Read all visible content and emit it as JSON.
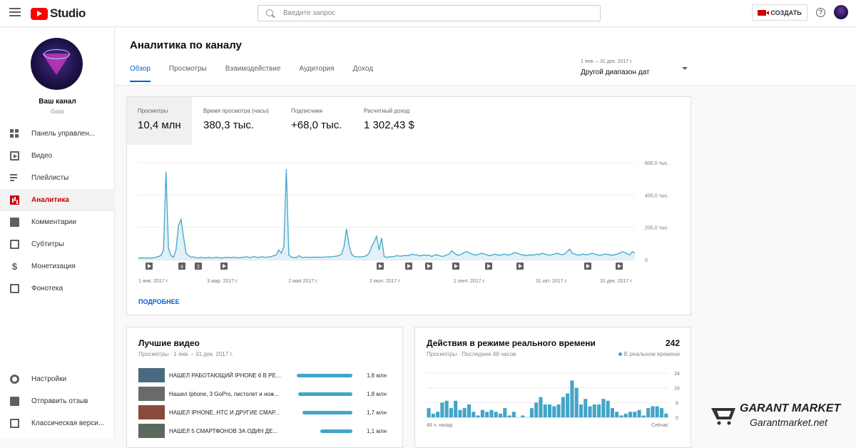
{
  "app": {
    "logo_text": "Studio"
  },
  "search": {
    "placeholder": "Введите запрос"
  },
  "toolbar": {
    "create_label": "СОЗДАТЬ",
    "help_glyph": "?"
  },
  "channel": {
    "name": "Ваш канал",
    "handle": "Goss"
  },
  "sidebar": {
    "items": [
      {
        "label": "Панель управлен...",
        "icon": "dashboard-icon",
        "active": false
      },
      {
        "label": "Видео",
        "icon": "video-icon",
        "active": false
      },
      {
        "label": "Плейлисты",
        "icon": "playlist-icon",
        "active": false
      },
      {
        "label": "Аналитика",
        "icon": "analytics-icon",
        "active": true
      },
      {
        "label": "Комментарии",
        "icon": "comments-icon",
        "active": false
      },
      {
        "label": "Субтитры",
        "icon": "subtitles-icon",
        "active": false
      },
      {
        "label": "Монетизация",
        "icon": "dollar-icon",
        "active": false
      },
      {
        "label": "Фонотека",
        "icon": "audio-library-icon",
        "active": false
      }
    ],
    "bottom_items": [
      {
        "label": "Настройки",
        "icon": "gear-icon"
      },
      {
        "label": "Отправить отзыв",
        "icon": "feedback-icon"
      },
      {
        "label": "Классическая верси...",
        "icon": "classic-icon"
      }
    ]
  },
  "header": {
    "title": "Аналитика по каналу",
    "tabs": [
      {
        "label": "Обзор",
        "active": true
      },
      {
        "label": "Просмотры",
        "active": false
      },
      {
        "label": "Взаимодействие",
        "active": false
      },
      {
        "label": "Аудитория",
        "active": false
      },
      {
        "label": "Доход",
        "active": false
      }
    ],
    "date_range_small": "1 янв. – 31 дек. 2017 г.",
    "date_range_label": "Другой диапазон дат"
  },
  "overview": {
    "metrics": [
      {
        "label": "Просмотры",
        "value": "10,4 млн",
        "active": true
      },
      {
        "label": "Время просмотра (часы)",
        "value": "380,3 тыс.",
        "active": false
      },
      {
        "label": "Подписчики",
        "value": "+68,0 тыс.",
        "active": false
      },
      {
        "label": "Расчетный доход",
        "value": "1 302,43 $",
        "active": false
      }
    ],
    "more_label": "ПОДРОБНЕЕ"
  },
  "chart_data": [
    {
      "type": "area",
      "y_ticks": [
        "600,0 тыс.",
        "400,0 тыс.",
        "200,0 тыс.",
        "0"
      ],
      "ylim": [
        0,
        600000
      ],
      "x_labels": [
        "1 янв. 2017 г.",
        "3 мар. 2017 г.",
        "2 мая 2017 г.",
        "2 июл. 2017 г.",
        "1 сент. 2017 г.",
        "31 окт. 2017 г.",
        "31 дек. 2017 г."
      ],
      "markers": [
        "",
        "4",
        "2",
        "",
        "",
        "",
        "",
        "",
        "",
        "",
        "",
        ""
      ],
      "values": [
        10000,
        10000,
        12000,
        10000,
        11000,
        10000,
        12000,
        15000,
        20000,
        25000,
        60000,
        545000,
        70000,
        25000,
        15000,
        60000,
        210000,
        250000,
        140000,
        40000,
        25000,
        15000,
        18000,
        12000,
        10000,
        14000,
        12000,
        10000,
        15000,
        12000,
        11000,
        16000,
        12000,
        10000,
        12000,
        15000,
        14000,
        12000,
        16000,
        13000,
        12000,
        15000,
        14000,
        18000,
        15000,
        14000,
        20000,
        15000,
        14000,
        18000,
        16000,
        15000,
        17000,
        19000,
        25000,
        30000,
        60000,
        40000,
        80000,
        560000,
        30000,
        15000,
        14000,
        12000,
        25000,
        15000,
        14000,
        16000,
        15000,
        14000,
        16000,
        14000,
        16000,
        15000,
        16000,
        17000,
        18000,
        17000,
        20000,
        22000,
        25000,
        35000,
        80000,
        190000,
        90000,
        35000,
        20000,
        18000,
        17000,
        18000,
        20000,
        25000,
        40000,
        80000,
        110000,
        145000,
        60000,
        135000,
        20000,
        14000,
        18000,
        18000,
        20000,
        25000,
        22000,
        22000,
        26000,
        25000,
        25000,
        35000,
        30000,
        30000,
        24000,
        25000,
        30000,
        25000,
        27000,
        20000,
        28000,
        30000,
        25000,
        20000,
        23000,
        30000,
        35000,
        55000,
        40000,
        30000,
        28000,
        35000,
        45000,
        50000,
        42000,
        35000,
        30000,
        30000,
        35000,
        40000,
        35000,
        30000,
        25000,
        28000,
        35000,
        30000,
        28000,
        30000,
        35000,
        30000,
        30000,
        35000,
        45000,
        40000,
        35000,
        30000,
        28000,
        25000,
        30000,
        28000,
        30000,
        35000,
        30000,
        40000,
        35000,
        30000,
        28000,
        32000,
        35000,
        40000,
        35000,
        30000,
        35000,
        50000,
        65000,
        40000,
        35000,
        30000,
        28000,
        35000,
        32000,
        30000,
        35000,
        40000,
        35000,
        30000,
        28000,
        30000,
        35000,
        32000,
        30000,
        28000,
        30000,
        35000,
        40000,
        50000,
        45000,
        35000,
        30000,
        50000,
        40000
      ]
    },
    {
      "type": "bar",
      "title": "Действия в режиме реального времени",
      "subtitle": "Просмотры · Последние 48 часов",
      "y_ticks": [
        "24",
        "16",
        "8",
        "0"
      ],
      "ylim": [
        0,
        24
      ],
      "x_labels": [
        "48 ч. назад",
        "Сейчас"
      ],
      "values": [
        5,
        2,
        3,
        8,
        9,
        5,
        9,
        4,
        5,
        7,
        3,
        1,
        4,
        3,
        4,
        3,
        2,
        5,
        1,
        3,
        0,
        1,
        0,
        5,
        8,
        11,
        7,
        7,
        6,
        7,
        11,
        13,
        20,
        16,
        7,
        10,
        6,
        7,
        7,
        10,
        9,
        5,
        3,
        1,
        2,
        3,
        3,
        4,
        1,
        5,
        6,
        6,
        5,
        2
      ]
    }
  ],
  "top_videos": {
    "title": "Лучшие видео",
    "subtitle": "Просмотры · 1 янв. – 31 дек. 2017 г.",
    "items": [
      {
        "title": "НАШЕЛ РАБОТАЮЩИЙ IPHONE 6 В РЕ...",
        "views": "1,8 млн",
        "share": 1.0
      },
      {
        "title": "Нашел Iphone, 3 GoPro, пистолет и нож...",
        "views": "1,8 млн",
        "share": 0.98
      },
      {
        "title": "НАШЕЛ IPHONE, HTC И ДРУГИЕ СМАР...",
        "views": "1,7 млн",
        "share": 0.9
      },
      {
        "title": "НАШЕЛ 5 СМАРТФОНОВ ЗА ОДИН ДЕ...",
        "views": "1,1 млн",
        "share": 0.58
      }
    ]
  },
  "realtime": {
    "count": "242",
    "live_label": "В реальном времени"
  },
  "watermark": {
    "line1": "GARANT MARKET",
    "line2": "Garantmarket.net"
  }
}
